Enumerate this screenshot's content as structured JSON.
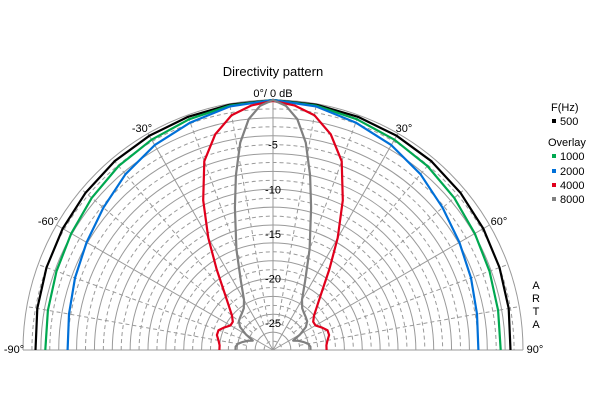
{
  "chart_data": {
    "type": "line",
    "title": "Directivity pattern",
    "polar": true,
    "angle_ticks": [
      {
        "angle": 0,
        "label": "0°/ 0 dB"
      },
      {
        "angle": -30,
        "label": "-30°"
      },
      {
        "angle": 30,
        "label": "30°"
      },
      {
        "angle": -60,
        "label": "-60°"
      },
      {
        "angle": 60,
        "label": "60°"
      },
      {
        "angle": -90,
        "label": "-90°"
      },
      {
        "angle": 90,
        "label": "90°"
      }
    ],
    "db_ticks": [
      {
        "value": -5,
        "label": "-5"
      },
      {
        "value": -10,
        "label": "-10"
      },
      {
        "value": -15,
        "label": "-15"
      },
      {
        "value": -20,
        "label": "-20"
      },
      {
        "value": -25,
        "label": "-25"
      }
    ],
    "r_range": [
      -28,
      0
    ],
    "angle_range": [
      -90,
      90
    ],
    "legend": {
      "header": "F(Hz)",
      "overlay_header": "Overlay",
      "placement": "right"
    },
    "side_label": [
      "A",
      "R",
      "T",
      "A"
    ],
    "series": [
      {
        "name": "500",
        "color": "#000000",
        "points": [
          [
            0,
            0
          ],
          [
            10,
            -0.1
          ],
          [
            20,
            -0.2
          ],
          [
            30,
            -0.3
          ],
          [
            40,
            -0.4
          ],
          [
            50,
            -0.6
          ],
          [
            60,
            -0.8
          ],
          [
            70,
            -1.0
          ],
          [
            80,
            -1.2
          ],
          [
            90,
            -1.4
          ]
        ]
      },
      {
        "name": "1000",
        "color": "#00a850",
        "points": [
          [
            0,
            0
          ],
          [
            10,
            -0.2
          ],
          [
            20,
            -0.5
          ],
          [
            30,
            -0.8
          ],
          [
            40,
            -1.1
          ],
          [
            50,
            -1.5
          ],
          [
            60,
            -1.9
          ],
          [
            70,
            -2.2
          ],
          [
            80,
            -2.4
          ],
          [
            90,
            -2.5
          ]
        ]
      },
      {
        "name": "2000",
        "color": "#0070d8",
        "points": [
          [
            0,
            0
          ],
          [
            10,
            -0.3
          ],
          [
            20,
            -0.9
          ],
          [
            30,
            -1.5
          ],
          [
            40,
            -2.3
          ],
          [
            50,
            -3.2
          ],
          [
            60,
            -3.9
          ],
          [
            70,
            -4.4
          ],
          [
            80,
            -4.8
          ],
          [
            90,
            -5.0
          ]
        ]
      },
      {
        "name": "4000",
        "color": "#e0001c",
        "points": [
          [
            0,
            -0.1
          ],
          [
            5,
            -0.5
          ],
          [
            10,
            -1.3
          ],
          [
            15,
            -3.0
          ],
          [
            20,
            -5.5
          ],
          [
            25,
            -9.5
          ],
          [
            30,
            -13.5
          ],
          [
            35,
            -17.0
          ],
          [
            40,
            -19.5
          ],
          [
            45,
            -21.0
          ],
          [
            50,
            -22.0
          ],
          [
            55,
            -22.5
          ],
          [
            60,
            -22.5
          ],
          [
            65,
            -22.0
          ],
          [
            70,
            -21.5
          ],
          [
            75,
            -21.5
          ],
          [
            80,
            -21.8
          ],
          [
            85,
            -22.0
          ],
          [
            90,
            -22.0
          ]
        ]
      },
      {
        "name": "8000",
        "color": "#808080",
        "points": [
          [
            0,
            0
          ],
          [
            3,
            -0.6
          ],
          [
            6,
            -2.0
          ],
          [
            9,
            -4.5
          ],
          [
            12,
            -8.0
          ],
          [
            15,
            -11.5
          ],
          [
            20,
            -16.0
          ],
          [
            25,
            -19.5
          ],
          [
            30,
            -21.5
          ],
          [
            35,
            -22.3
          ],
          [
            40,
            -22.6
          ],
          [
            45,
            -22.8
          ],
          [
            50,
            -23.0
          ],
          [
            55,
            -23.5
          ],
          [
            60,
            -24.5
          ],
          [
            65,
            -25.5
          ],
          [
            70,
            -25.0
          ],
          [
            75,
            -24.5
          ],
          [
            80,
            -24.0
          ],
          [
            85,
            -23.8
          ],
          [
            90,
            -23.8
          ]
        ]
      }
    ]
  }
}
